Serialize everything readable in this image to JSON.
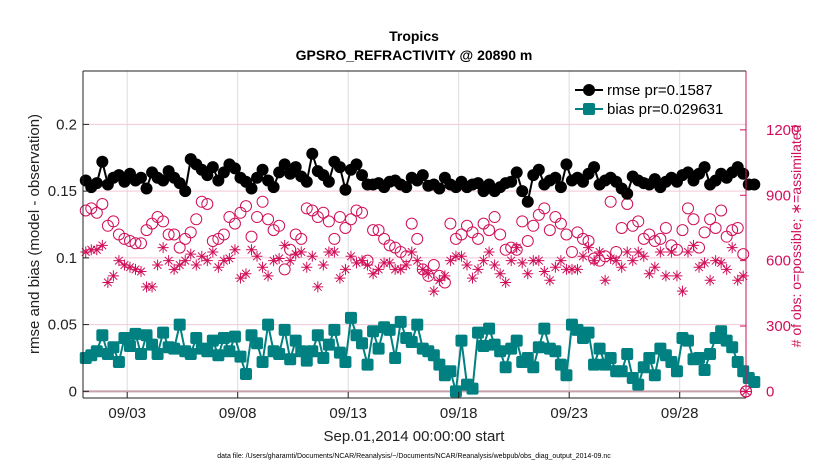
{
  "chart_data": {
    "type": "line",
    "title": "Tropics",
    "subtitle": "GPSRO_REFRACTIVITY @ 20890 m",
    "xlabel": "Sep.01,2014 00:00:00 start",
    "ylabel": "rmse and bias (model - observation)",
    "y2label": "# of obs: o=possible; ∗=assimilated",
    "footnote": "data file: /Users/gharamti/Documents/NCAR/Reanalysis/~/Documents/NCAR/Reanalysis/webpub/obs_diag_output_2014-09.nc",
    "xlim_days": [
      0,
      30
    ],
    "ylim": [
      -0.005,
      0.24
    ],
    "y2lim": [
      -30,
      1470
    ],
    "x_ticks": [
      {
        "day": 2,
        "label": "09/03"
      },
      {
        "day": 7,
        "label": "09/08"
      },
      {
        "day": 12,
        "label": "09/13"
      },
      {
        "day": 17,
        "label": "09/18"
      },
      {
        "day": 22,
        "label": "09/23"
      },
      {
        "day": 27,
        "label": "09/28"
      }
    ],
    "y_ticks": [
      0,
      0.05,
      0.1,
      0.15,
      0.2
    ],
    "y_tick_labels": [
      "0",
      "0.05",
      "0.1",
      "0.15",
      "0.2"
    ],
    "y2_ticks": [
      0,
      300,
      600,
      900,
      1200
    ],
    "y2_tick_labels": [
      "0",
      "300",
      "600",
      "900",
      "1200"
    ],
    "grid": true,
    "legend_position": "top-right",
    "colors": {
      "rmse": "#000000",
      "bias": "#008080",
      "obs": "#d0105a",
      "zero_line": "#c8a0aa",
      "grid": "#dddddd",
      "hgrid": "#f3c8d8"
    },
    "time_step_days": 0.25,
    "series": [
      {
        "name": "rmse pr=0.1587",
        "key": "rmse",
        "axis": "left",
        "marker": "circle",
        "values": [
          0.158,
          0.153,
          0.156,
          0.172,
          0.155,
          0.16,
          0.162,
          0.157,
          0.163,
          0.158,
          0.16,
          0.152,
          0.164,
          0.16,
          0.158,
          0.165,
          0.16,
          0.156,
          0.15,
          0.174,
          0.17,
          0.166,
          0.162,
          0.168,
          0.158,
          0.164,
          0.17,
          0.167,
          0.16,
          0.157,
          0.152,
          0.16,
          0.166,
          0.158,
          0.153,
          0.164,
          0.17,
          0.163,
          0.168,
          0.161,
          0.157,
          0.178,
          0.165,
          0.162,
          0.157,
          0.172,
          0.168,
          0.151,
          0.166,
          0.17,
          0.162,
          0.155,
          0.155,
          0.156,
          0.153,
          0.157,
          0.158,
          0.155,
          0.153,
          0.16,
          0.158,
          0.162,
          0.154,
          0.155,
          0.152,
          0.16,
          0.155,
          0.153,
          0.157,
          0.153,
          0.155,
          0.156,
          0.15,
          0.155,
          0.15,
          0.153,
          0.156,
          0.157,
          0.164,
          0.15,
          0.142,
          0.162,
          0.166,
          0.155,
          0.158,
          0.16,
          0.153,
          0.17,
          0.158,
          0.16,
          0.157,
          0.163,
          0.168,
          0.155,
          0.158,
          0.16,
          0.157,
          0.152,
          0.148,
          0.161,
          0.158,
          0.156,
          0.155,
          0.159,
          0.153,
          0.157,
          0.16,
          0.157,
          0.162,
          0.164,
          0.158,
          0.163,
          0.168,
          0.155,
          0.158,
          0.163,
          0.16,
          0.164,
          0.168,
          0.163,
          0.155,
          0.155
        ]
      },
      {
        "name": "bias pr=0.029631",
        "key": "bias",
        "axis": "left",
        "marker": "square",
        "values": [
          0.025,
          0.027,
          0.03,
          0.042,
          0.028,
          0.033,
          0.022,
          0.04,
          0.034,
          0.043,
          0.028,
          0.042,
          0.035,
          0.028,
          0.044,
          0.033,
          0.032,
          0.05,
          0.03,
          0.028,
          0.04,
          0.032,
          0.03,
          0.038,
          0.027,
          0.04,
          0.03,
          0.041,
          0.026,
          0.013,
          0.042,
          0.036,
          0.022,
          0.05,
          0.03,
          0.028,
          0.046,
          0.024,
          0.038,
          0.03,
          0.023,
          0.03,
          0.042,
          0.025,
          0.035,
          0.046,
          0.029,
          0.022,
          0.055,
          0.042,
          0.036,
          0.02,
          0.045,
          0.032,
          0.048,
          0.046,
          0.025,
          0.052,
          0.04,
          0.037,
          0.05,
          0.032,
          0.03,
          0.027,
          0.02,
          0.012,
          0.015,
          0.0,
          0.038,
          0.005,
          0.002,
          0.044,
          0.034,
          0.047,
          0.035,
          0.03,
          0.018,
          0.032,
          0.038,
          0.022,
          0.025,
          0.018,
          0.033,
          0.047,
          0.032,
          0.03,
          0.02,
          0.012,
          0.05,
          0.046,
          0.04,
          0.044,
          0.02,
          0.032,
          0.02,
          0.025,
          0.015,
          0.015,
          0.028,
          0.01,
          0.005,
          0.018,
          0.025,
          0.012,
          0.032,
          0.027,
          0.022,
          0.015,
          0.04,
          0.038,
          0.024,
          0.025,
          0.016,
          0.028,
          0.04,
          0.045,
          0.038,
          0.033,
          0.022,
          0.015,
          0.01,
          0.007
        ]
      },
      {
        "name": "possible",
        "key": "possible",
        "axis": "right",
        "marker": "open-circle",
        "values": [
          830,
          840,
          820,
          860,
          760,
          780,
          720,
          700,
          690,
          680,
          680,
          740,
          770,
          800,
          780,
          720,
          720,
          660,
          700,
          730,
          790,
          870,
          860,
          690,
          700,
          720,
          800,
          770,
          820,
          850,
          710,
          800,
          870,
          790,
          740,
          760,
          560,
          650,
          720,
          700,
          840,
          830,
          800,
          820,
          780,
          700,
          800,
          750,
          790,
          830,
          820,
          600,
          740,
          740,
          700,
          670,
          660,
          640,
          620,
          770,
          700,
          560,
          530,
          580,
          530,
          500,
          770,
          700,
          720,
          760,
          730,
          700,
          770,
          740,
          800,
          720,
          650,
          660,
          650,
          780,
          690,
          760,
          810,
          840,
          740,
          800,
          770,
          720,
          640,
          730,
          700,
          690,
          610,
          600,
          620,
          870,
          640,
          750,
          860,
          760,
          780,
          700,
          720,
          690,
          700,
          750,
          670,
          650,
          740,
          840,
          790,
          660,
          730,
          790,
          750,
          830,
          710,
          740,
          750,
          630
        ]
      },
      {
        "name": "assimilated",
        "key": "assimilated",
        "axis": "right",
        "marker": "asterisk",
        "values": [
          640,
          650,
          650,
          670,
          500,
          530,
          600,
          580,
          570,
          560,
          550,
          480,
          480,
          580,
          660,
          600,
          560,
          580,
          600,
          630,
          580,
          620,
          600,
          640,
          570,
          600,
          610,
          650,
          520,
          540,
          650,
          620,
          570,
          530,
          600,
          610,
          670,
          600,
          630,
          640,
          570,
          620,
          480,
          580,
          640,
          640,
          520,
          560,
          620,
          590,
          600,
          580,
          540,
          560,
          590,
          590,
          560,
          560,
          580,
          640,
          600,
          560,
          540,
          460,
          510,
          530,
          600,
          620,
          620,
          580,
          520,
          560,
          600,
          640,
          580,
          540,
          500,
          600,
          660,
          590,
          540,
          600,
          600,
          550,
          510,
          570,
          600,
          560,
          560,
          560,
          620,
          660,
          600,
          640,
          510,
          610,
          600,
          570,
          640,
          600,
          640,
          620,
          540,
          570,
          640,
          530,
          640,
          530,
          460,
          640,
          670,
          570,
          590,
          510,
          600,
          590,
          560,
          660,
          510,
          530
        ]
      }
    ]
  },
  "legend": {
    "rmse_label": "rmse pr=0.1587",
    "bias_label": "bias pr=0.029631"
  }
}
